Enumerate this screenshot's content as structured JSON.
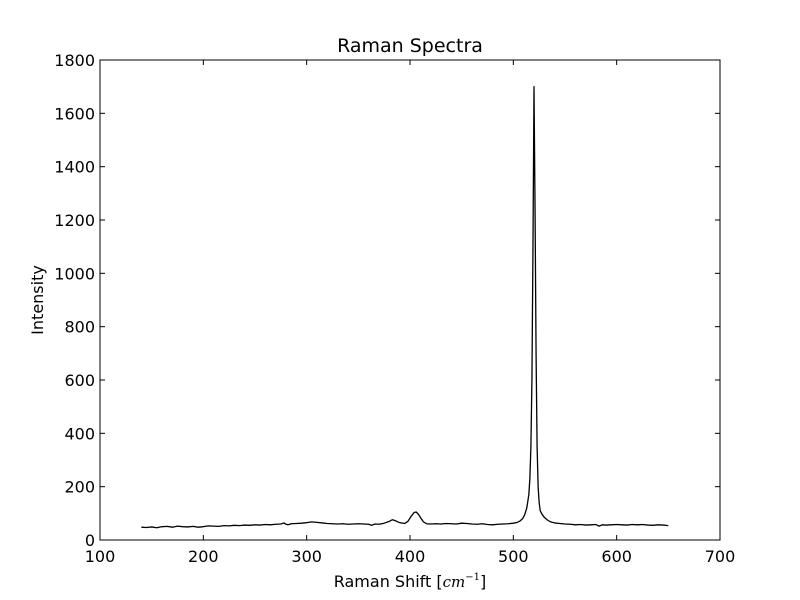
{
  "chart_data": {
    "type": "line",
    "title": "Raman Spectra",
    "xlabel": {
      "prefix": "Raman Shift [",
      "unit": "cm",
      "exponent": "−1",
      "suffix": "]"
    },
    "ylabel": "Intensity",
    "xlim": [
      100,
      700
    ],
    "ylim": [
      0,
      1800
    ],
    "xticks": [
      100,
      200,
      300,
      400,
      500,
      600,
      700
    ],
    "yticks": [
      0,
      200,
      400,
      600,
      800,
      1000,
      1200,
      1400,
      1600,
      1800
    ],
    "grid": false,
    "line_color": "#000000",
    "series": [
      {
        "x": [
          140,
          145,
          150,
          155,
          160,
          165,
          170,
          175,
          180,
          185,
          190,
          195,
          200,
          205,
          210,
          215,
          220,
          225,
          230,
          235,
          240,
          245,
          250,
          255,
          260,
          265,
          270,
          275,
          278,
          280,
          282,
          285,
          290,
          295,
          300,
          305,
          310,
          315,
          320,
          325,
          330,
          335,
          340,
          345,
          350,
          355,
          360,
          363,
          366,
          370,
          375,
          380,
          383,
          386,
          390,
          395,
          398,
          401,
          404,
          406,
          408,
          410,
          413,
          416,
          420,
          425,
          430,
          435,
          440,
          445,
          450,
          455,
          460,
          465,
          470,
          475,
          480,
          485,
          490,
          495,
          500,
          503,
          506,
          509,
          511,
          513,
          515,
          516,
          517,
          518,
          519,
          520,
          521,
          522,
          523,
          524,
          525,
          526,
          528,
          530,
          533,
          536,
          540,
          545,
          550,
          555,
          560,
          565,
          570,
          575,
          580,
          583,
          586,
          590,
          595,
          600,
          605,
          610,
          615,
          620,
          625,
          630,
          635,
          640,
          645,
          650
        ],
        "y": [
          48,
          47,
          49,
          46,
          50,
          51,
          48,
          52,
          50,
          49,
          51,
          48,
          50,
          53,
          52,
          51,
          54,
          53,
          55,
          54,
          56,
          55,
          57,
          56,
          58,
          57,
          59,
          60,
          64,
          59,
          57,
          61,
          62,
          63,
          65,
          68,
          66,
          64,
          62,
          61,
          60,
          61,
          59,
          60,
          61,
          60,
          59,
          55,
          60,
          59,
          63,
          70,
          76,
          72,
          65,
          62,
          70,
          88,
          103,
          105,
          97,
          85,
          68,
          61,
          60,
          61,
          60,
          62,
          61,
          60,
          63,
          62,
          60,
          59,
          61,
          58,
          57,
          59,
          60,
          61,
          63,
          65,
          70,
          80,
          95,
          120,
          170,
          230,
          350,
          600,
          1100,
          1700,
          1250,
          700,
          350,
          200,
          140,
          110,
          95,
          85,
          75,
          68,
          64,
          62,
          60,
          59,
          57,
          58,
          56,
          57,
          58,
          52,
          57,
          56,
          57,
          58,
          57,
          56,
          58,
          57,
          58,
          56,
          55,
          57,
          56,
          54
        ]
      }
    ]
  }
}
